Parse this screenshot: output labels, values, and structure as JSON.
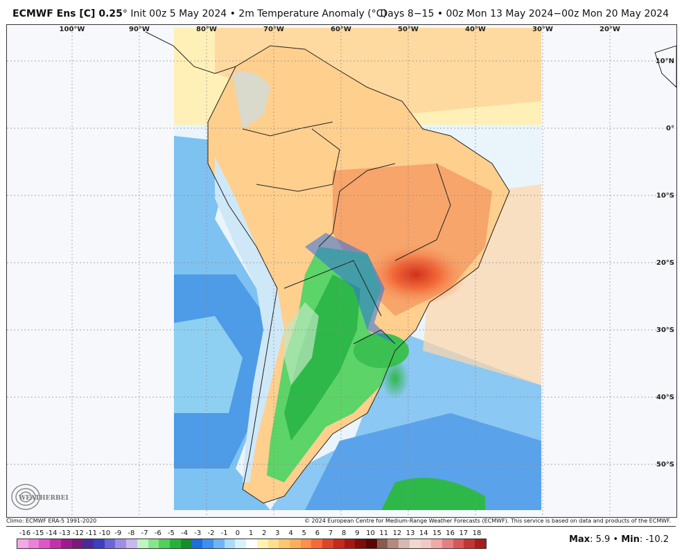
{
  "header": {
    "title_left_bold": "ECMWF Ens [C] 0.25",
    "title_left_rest": "° Init 00z 5 May 2024 • 2m Temperature Anomaly (°C)",
    "title_right": "Days 8−15 • 00z Mon 13 May 2024−00z Mon 20 May 2024"
  },
  "map": {
    "lon_labels": [
      "100°W",
      "90°W",
      "80°W",
      "70°W",
      "60°W",
      "50°W",
      "40°W",
      "30°W",
      "20°W"
    ],
    "lat_labels": [
      "10°N",
      "0°",
      "10°S",
      "20°S",
      "30°S",
      "40°S",
      "50°S"
    ],
    "logo_text": "WEATHERBELL"
  },
  "footer": {
    "climo": "Climo: ECMWF ERA-5 1991-2020",
    "copyright": "© 2024 European Centre for Medium-Range Weather Forecasts (ECMWF). This service is based on data and products of the ECMWF.",
    "max_label": "Max",
    "max_value": ": 5.9 • ",
    "min_label": "Min",
    "min_value": ": -10.2"
  },
  "colorbar": {
    "labels": [
      "-16",
      "-15",
      "-14",
      "-13",
      "-12",
      "-11",
      "-10",
      "-9",
      "-8",
      "-7",
      "-6",
      "-5",
      "-4",
      "-3",
      "-2",
      "-1",
      "0",
      "1",
      "2",
      "3",
      "4",
      "5",
      "6",
      "7",
      "8",
      "9",
      "10",
      "11",
      "12",
      "13",
      "14",
      "15",
      "16",
      "17",
      "18"
    ],
    "colors": [
      "#f5a8e6",
      "#ee7fd9",
      "#e055c8",
      "#c52fae",
      "#a01a8f",
      "#7c1a7a",
      "#4a2a9a",
      "#3c3fc0",
      "#6a66d8",
      "#9d8fe6",
      "#c9b8f0",
      "#bff5c0",
      "#88e68a",
      "#4fd05a",
      "#22b33a",
      "#128f2a",
      "#1b6fe0",
      "#3d8ff0",
      "#6fb4f5",
      "#a7ddfb",
      "#d6f3fc",
      "#ffffff",
      "#fff3b0",
      "#ffe08a",
      "#ffc870",
      "#ffae5c",
      "#ff8f4a",
      "#f56a38",
      "#e04428",
      "#c8271c",
      "#a81612",
      "#7d0d0a",
      "#5a0604",
      "#8a5a50",
      "#b48a80",
      "#d8b8b0",
      "#f0d8d0",
      "#f6c8c4",
      "#f0a8a8",
      "#e68080",
      "#d85858",
      "#c43434",
      "#a81c1c"
    ]
  }
}
